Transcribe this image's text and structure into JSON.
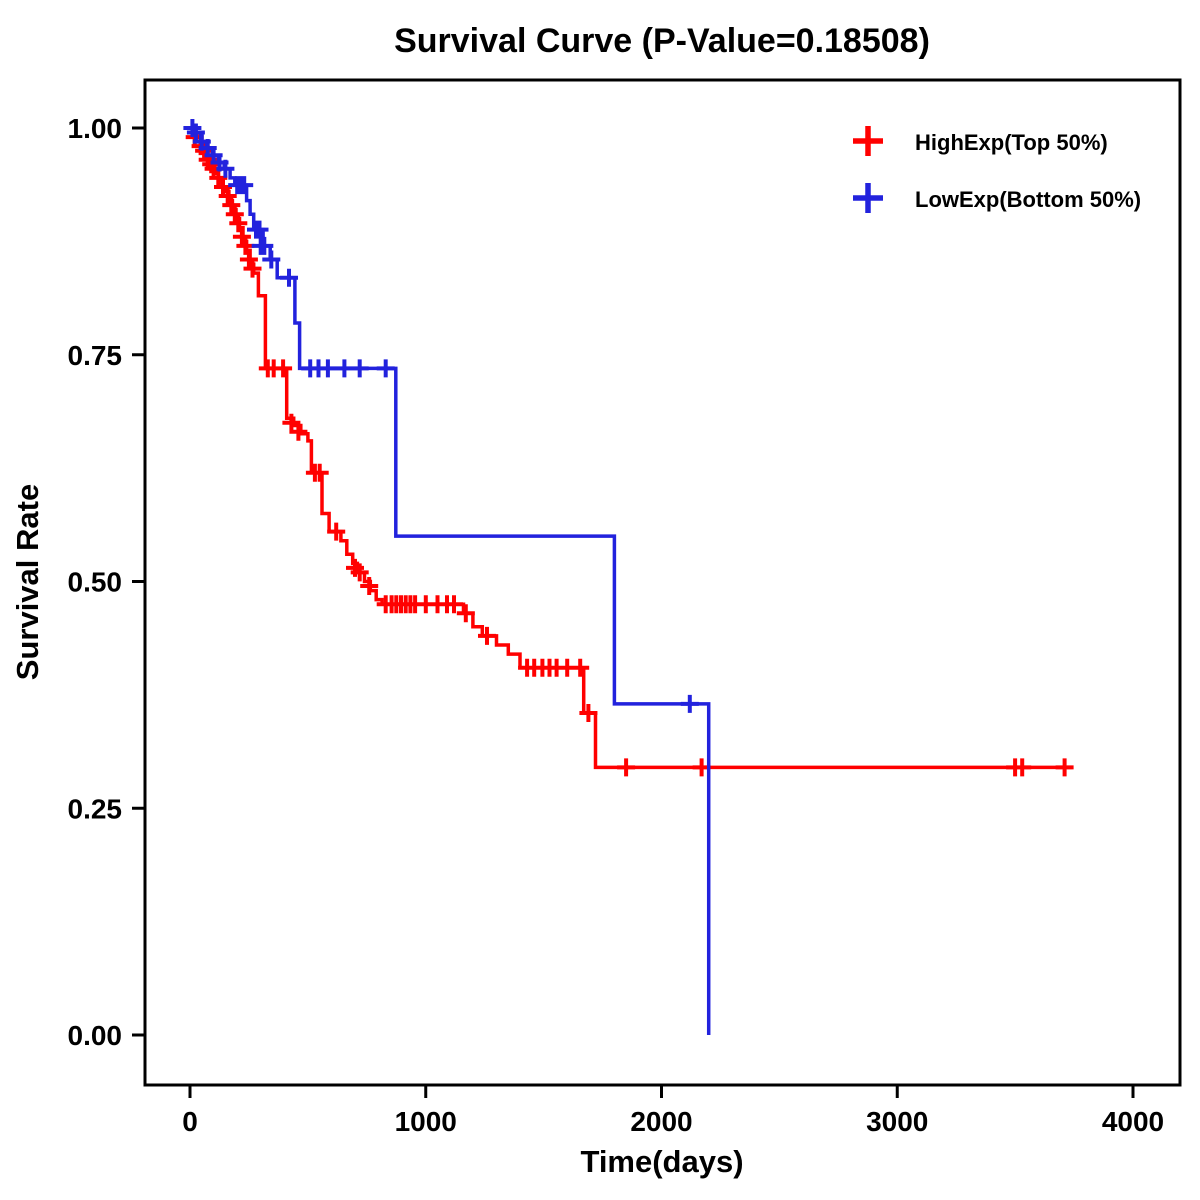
{
  "title": "Survival Curve (P-Value=0.18508)",
  "p_value": 0.18508,
  "chart_data": {
    "type": "line",
    "subtype": "kaplan-meier-step",
    "title": "Survival Curve (P-Value=0.18508)",
    "xlabel": "Time(days)",
    "ylabel": "Survival Rate",
    "xlim": [
      0,
      4000
    ],
    "ylim": [
      0.0,
      1.0
    ],
    "x_ticks": [
      0,
      1000,
      2000,
      3000,
      4000
    ],
    "y_ticks": [
      "0.00",
      "0.25",
      "0.50",
      "0.75",
      "1.00"
    ],
    "grid": false,
    "legend_position": "top-right",
    "series": [
      {
        "name": "HighExp(Top 50%)",
        "color": "#FF0000",
        "steps": [
          [
            0,
            1.0
          ],
          [
            15,
            0.995
          ],
          [
            30,
            0.99
          ],
          [
            45,
            0.985
          ],
          [
            60,
            0.975
          ],
          [
            75,
            0.965
          ],
          [
            90,
            0.96
          ],
          [
            105,
            0.95
          ],
          [
            120,
            0.945
          ],
          [
            135,
            0.935
          ],
          [
            150,
            0.93
          ],
          [
            165,
            0.92
          ],
          [
            180,
            0.91
          ],
          [
            195,
            0.9
          ],
          [
            210,
            0.89
          ],
          [
            225,
            0.875
          ],
          [
            240,
            0.865
          ],
          [
            255,
            0.85
          ],
          [
            270,
            0.84
          ],
          [
            290,
            0.815
          ],
          [
            320,
            0.735
          ],
          [
            410,
            0.68
          ],
          [
            440,
            0.672
          ],
          [
            470,
            0.663
          ],
          [
            500,
            0.655
          ],
          [
            515,
            0.62
          ],
          [
            560,
            0.575
          ],
          [
            590,
            0.555
          ],
          [
            640,
            0.545
          ],
          [
            665,
            0.53
          ],
          [
            690,
            0.52
          ],
          [
            710,
            0.51
          ],
          [
            740,
            0.5
          ],
          [
            765,
            0.49
          ],
          [
            790,
            0.48
          ],
          [
            815,
            0.475
          ],
          [
            1160,
            0.465
          ],
          [
            1200,
            0.45
          ],
          [
            1240,
            0.44
          ],
          [
            1300,
            0.43
          ],
          [
            1350,
            0.42
          ],
          [
            1400,
            0.405
          ],
          [
            1670,
            0.355
          ],
          [
            1720,
            0.295
          ],
          [
            3740,
            0.295
          ]
        ],
        "censor_marks": [
          [
            20,
            0.99
          ],
          [
            45,
            0.98
          ],
          [
            60,
            0.975
          ],
          [
            75,
            0.965
          ],
          [
            90,
            0.96
          ],
          [
            100,
            0.955
          ],
          [
            120,
            0.945
          ],
          [
            140,
            0.935
          ],
          [
            160,
            0.925
          ],
          [
            175,
            0.915
          ],
          [
            190,
            0.905
          ],
          [
            205,
            0.895
          ],
          [
            220,
            0.88
          ],
          [
            235,
            0.87
          ],
          [
            250,
            0.855
          ],
          [
            265,
            0.845
          ],
          [
            330,
            0.735
          ],
          [
            355,
            0.735
          ],
          [
            395,
            0.735
          ],
          [
            430,
            0.675
          ],
          [
            460,
            0.665
          ],
          [
            530,
            0.62
          ],
          [
            550,
            0.62
          ],
          [
            620,
            0.555
          ],
          [
            700,
            0.515
          ],
          [
            720,
            0.51
          ],
          [
            760,
            0.495
          ],
          [
            830,
            0.475
          ],
          [
            855,
            0.475
          ],
          [
            875,
            0.475
          ],
          [
            895,
            0.475
          ],
          [
            915,
            0.475
          ],
          [
            935,
            0.475
          ],
          [
            955,
            0.475
          ],
          [
            1000,
            0.475
          ],
          [
            1050,
            0.475
          ],
          [
            1090,
            0.475
          ],
          [
            1120,
            0.475
          ],
          [
            1170,
            0.465
          ],
          [
            1260,
            0.44
          ],
          [
            1430,
            0.405
          ],
          [
            1460,
            0.405
          ],
          [
            1495,
            0.405
          ],
          [
            1525,
            0.405
          ],
          [
            1555,
            0.405
          ],
          [
            1600,
            0.405
          ],
          [
            1655,
            0.405
          ],
          [
            1690,
            0.355
          ],
          [
            1850,
            0.295
          ],
          [
            2170,
            0.295
          ],
          [
            3500,
            0.295
          ],
          [
            3530,
            0.295
          ],
          [
            3710,
            0.295
          ]
        ]
      },
      {
        "name": "LowExp(Bottom 50%)",
        "color": "#2222DD",
        "steps": [
          [
            0,
            1.0
          ],
          [
            20,
            0.995
          ],
          [
            45,
            0.985
          ],
          [
            70,
            0.978
          ],
          [
            95,
            0.97
          ],
          [
            120,
            0.962
          ],
          [
            145,
            0.955
          ],
          [
            170,
            0.945
          ],
          [
            190,
            0.937
          ],
          [
            240,
            0.92
          ],
          [
            255,
            0.905
          ],
          [
            270,
            0.888
          ],
          [
            310,
            0.87
          ],
          [
            340,
            0.855
          ],
          [
            370,
            0.835
          ],
          [
            445,
            0.785
          ],
          [
            465,
            0.735
          ],
          [
            873,
            0.55
          ],
          [
            1800,
            0.365
          ],
          [
            2200,
            0.365
          ],
          [
            2200,
            0.0
          ]
        ],
        "censor_marks": [
          [
            10,
            1.0
          ],
          [
            25,
            0.995
          ],
          [
            50,
            0.985
          ],
          [
            75,
            0.978
          ],
          [
            100,
            0.97
          ],
          [
            125,
            0.962
          ],
          [
            150,
            0.955
          ],
          [
            200,
            0.937
          ],
          [
            215,
            0.937
          ],
          [
            230,
            0.937
          ],
          [
            280,
            0.888
          ],
          [
            295,
            0.888
          ],
          [
            300,
            0.87
          ],
          [
            315,
            0.87
          ],
          [
            345,
            0.855
          ],
          [
            420,
            0.835
          ],
          [
            510,
            0.735
          ],
          [
            545,
            0.735
          ],
          [
            585,
            0.735
          ],
          [
            655,
            0.735
          ],
          [
            720,
            0.735
          ],
          [
            830,
            0.735
          ],
          [
            2120,
            0.365
          ]
        ]
      }
    ]
  },
  "legend": {
    "items": [
      {
        "label": "HighExp(Top 50%)",
        "color": "#FF0000",
        "marker": "plus-icon"
      },
      {
        "label": "LowExp(Bottom 50%)",
        "color": "#2222DD",
        "marker": "plus-icon"
      }
    ]
  }
}
